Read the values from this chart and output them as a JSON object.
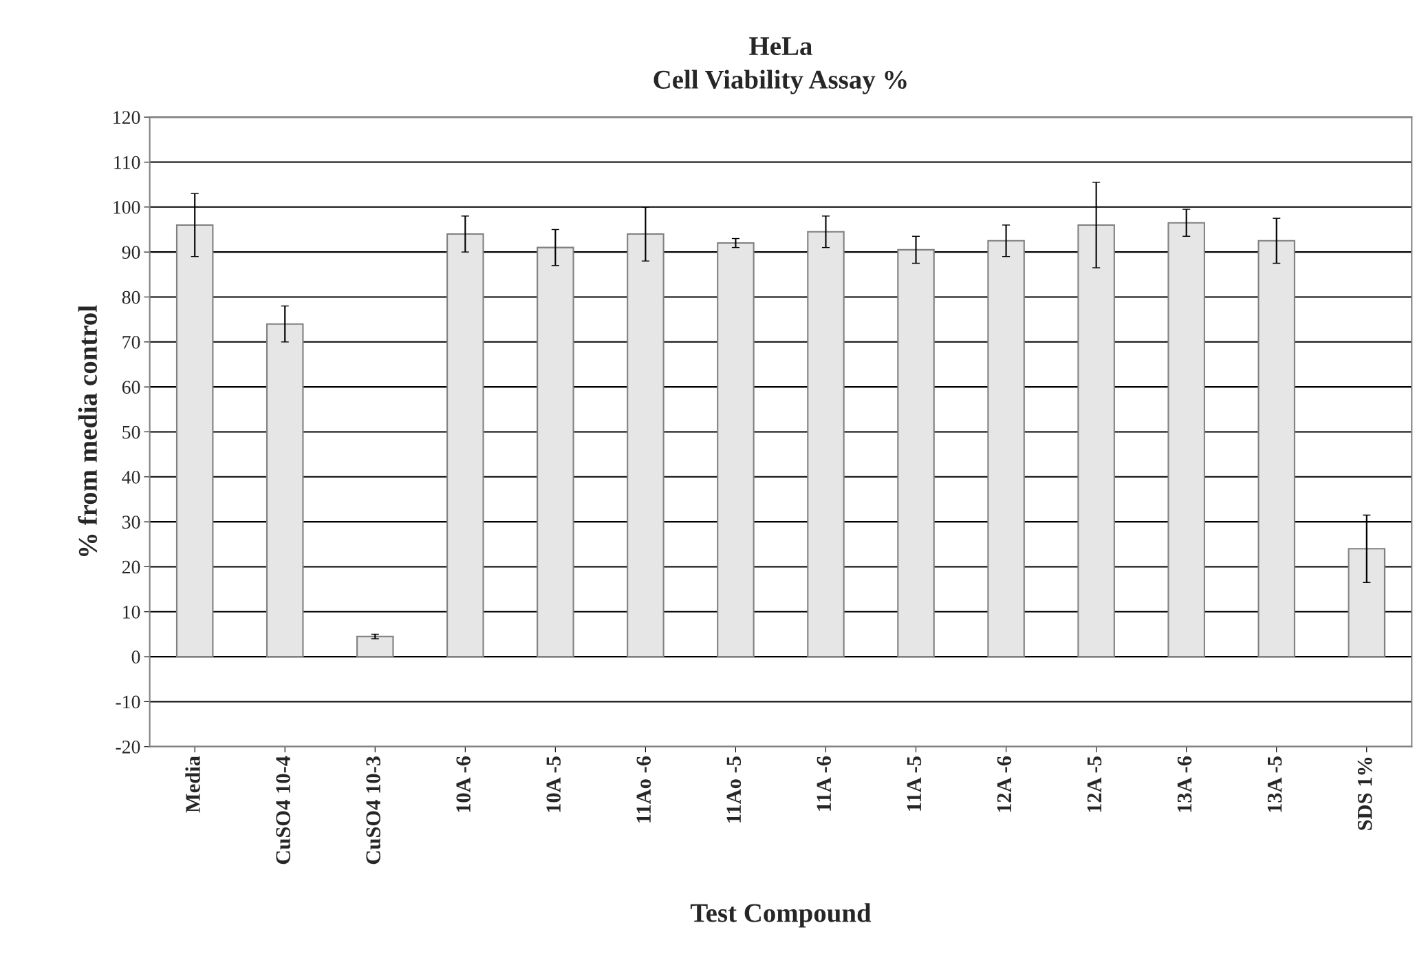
{
  "chart_data": {
    "type": "bar",
    "title": "HeLa\nCell Viability Assay %",
    "xlabel": "Test Compound",
    "ylabel": "% from media control",
    "categories": [
      "Media",
      "CuSO4 10-4",
      "CuSO4 10-3",
      "10A -6",
      "10A -5",
      "11Ao -6",
      "11Ao -5",
      "11A -6",
      "11A -5",
      "12A -6",
      "12A -5",
      "13A -6",
      "13A -5",
      "SDS 1%"
    ],
    "values": [
      96,
      74,
      4.5,
      94,
      91,
      94,
      92,
      94.5,
      90.5,
      92.5,
      96,
      96.5,
      92.5,
      24
    ],
    "errors": [
      7,
      4,
      0.5,
      4,
      4,
      6,
      1,
      3.5,
      3,
      3.5,
      9.5,
      3,
      5,
      7.5
    ],
    "color": "#e6e6e6",
    "ylim": [
      -20,
      120
    ],
    "yticks": [
      -20,
      -10,
      0,
      10,
      20,
      30,
      40,
      50,
      60,
      70,
      80,
      90,
      100,
      110,
      120
    ],
    "grid": "y",
    "legend": false
  }
}
